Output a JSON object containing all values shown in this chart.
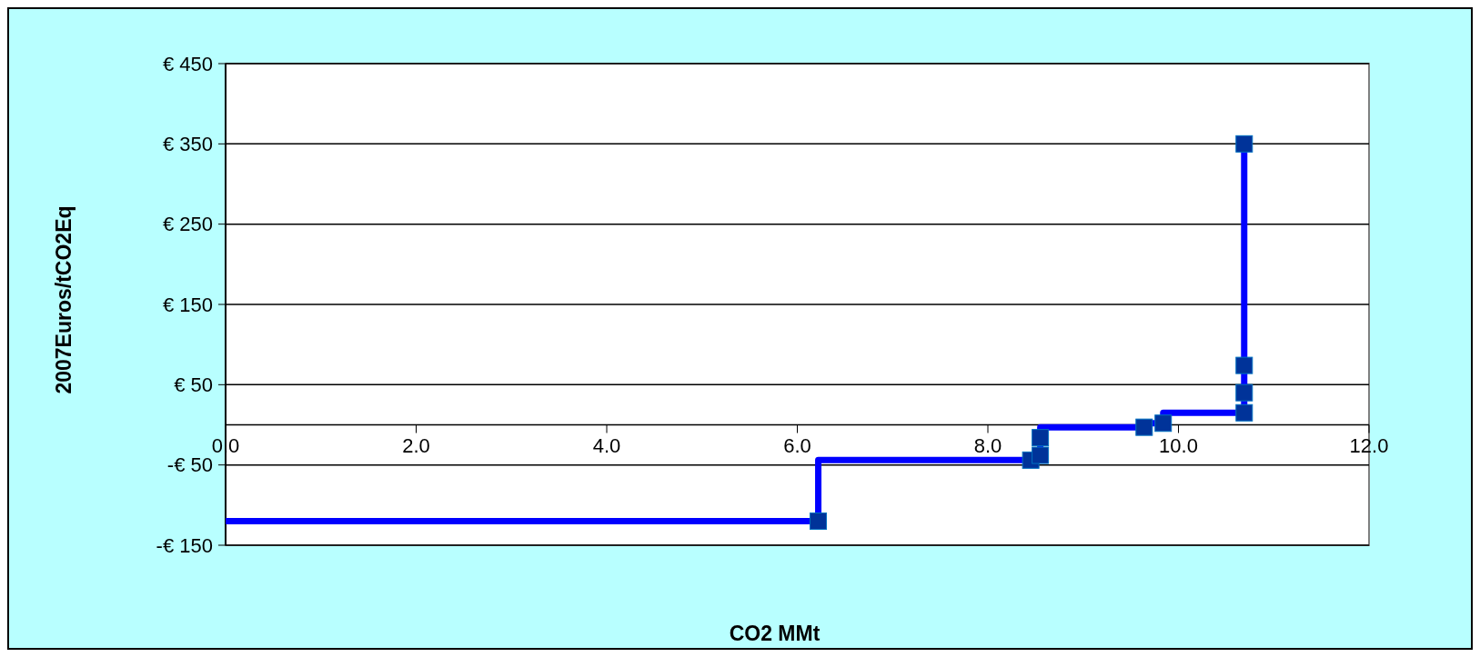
{
  "chart_data": {
    "type": "step",
    "xlabel": "CO2 MMt",
    "ylabel": "2007Euros/tCO2Eq",
    "xlim": [
      0,
      12
    ],
    "xticks": [
      {
        "value": 0,
        "label": "0.0"
      },
      {
        "value": 2,
        "label": "2.0"
      },
      {
        "value": 4,
        "label": "4.0"
      },
      {
        "value": 6,
        "label": "6.0"
      },
      {
        "value": 8,
        "label": "8.0"
      },
      {
        "value": 10,
        "label": "10.0"
      },
      {
        "value": 12,
        "label": "12.0"
      }
    ],
    "ylim": [
      -150,
      450
    ],
    "yticks": [
      {
        "value": -150,
        "label": "-€ 150"
      },
      {
        "value": -50,
        "label": "-€ 50"
      },
      {
        "value": 50,
        "label": "€ 50"
      },
      {
        "value": 150,
        "label": "€ 150"
      },
      {
        "value": 250,
        "label": "€ 250"
      },
      {
        "value": 350,
        "label": "€ 350"
      },
      {
        "value": 450,
        "label": "€ 450"
      }
    ],
    "grid": "y",
    "series": [
      {
        "color": "#0000ff",
        "marker": "none",
        "x": [
          0,
          6.22,
          8.45,
          8.55,
          8.55,
          9.64,
          9.84,
          10.69,
          10.69,
          10.69,
          10.69
        ],
        "values": [
          -120,
          -120,
          -44,
          -38,
          -16,
          -3,
          2,
          15,
          40,
          74,
          350
        ]
      },
      {
        "type": "scatter",
        "color": "#003399",
        "marker": "square",
        "x": [
          6.22,
          8.45,
          8.55,
          8.55,
          9.64,
          9.84,
          10.69,
          10.69,
          10.69,
          10.69
        ],
        "values": [
          -120,
          -44,
          -38,
          -16,
          -3,
          2,
          15,
          40,
          74,
          350
        ]
      }
    ]
  }
}
